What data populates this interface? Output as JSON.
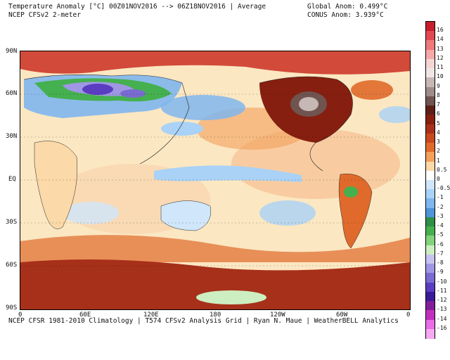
{
  "header": {
    "title_left": "Temperature Anomaly [°C] 00Z01NOV2016 --> 06Z18NOV2016 | Average",
    "subtitle_left": "NCEP CFSv2 2-meter",
    "global_anom": "Global Anom: 0.499°C",
    "conus_anom": "CONUS Anom: 3.939°C"
  },
  "axes": {
    "lat_labels": [
      "90N",
      "60N",
      "30N",
      "EQ",
      "30S",
      "60S",
      "90S"
    ],
    "lon_labels": [
      "0",
      "60E",
      "120E",
      "180",
      "120W",
      "60W",
      "0"
    ]
  },
  "colorbar": {
    "labels": [
      "16",
      "14",
      "13",
      "12",
      "11",
      "10",
      "9",
      "8",
      "7",
      "6",
      "5",
      "4",
      "3",
      "2",
      "1",
      "0.5",
      "0",
      "-0.5",
      "-1",
      "-2",
      "-3",
      "-4",
      "-5",
      "-6",
      "-7",
      "-8",
      "-9",
      "-10",
      "-11",
      "-12",
      "-13",
      "-14",
      "-16"
    ],
    "colors": [
      "#c81e2b",
      "#e0494f",
      "#f0797a",
      "#f7a9a8",
      "#f5d6d5",
      "#efe6e5",
      "#c7b7b5",
      "#9f8b89",
      "#6f5450",
      "#5c1f16",
      "#861f0f",
      "#a7301a",
      "#c9481f",
      "#e06a2b",
      "#f4a05a",
      "#fbd9a8",
      "#ffffff",
      "#cfe6fb",
      "#a9d2f6",
      "#7fb6ee",
      "#4f93d9",
      "#2e8f47",
      "#45b04f",
      "#82d37b",
      "#cdeec0",
      "#c7c3f0",
      "#9f97e3",
      "#7a6bd2",
      "#5a3dc0",
      "#3b1a9a",
      "#801f97",
      "#c22fbf",
      "#ea6ce6",
      "#f5a9f3"
    ]
  },
  "map": {
    "background_color": "#fbe7c2",
    "regions": [
      {
        "name": "arctic-warm-band",
        "color": "#d24a3a"
      },
      {
        "name": "siberia-cold-anomaly",
        "color": "#5a3dc0"
      },
      {
        "name": "north-america-warm-anomaly",
        "color": "#861f0f"
      },
      {
        "name": "canada-peak-warm-anomaly",
        "color": "#6f5450"
      },
      {
        "name": "north-pacific-cool-anomaly",
        "color": "#7fb6ee"
      },
      {
        "name": "equatorial-pacific-cool-band",
        "color": "#a9d2f6"
      },
      {
        "name": "antarctic-warm-anomaly",
        "color": "#a7301a"
      },
      {
        "name": "southern-ocean-warm-band",
        "color": "#e06a2b"
      }
    ]
  },
  "footer": {
    "credit": "NCEP CFSR 1981-2010 Climatology | T574 CFSv2 Analysis Grid | Ryan N. Maue | WeatherBELL Analytics"
  }
}
